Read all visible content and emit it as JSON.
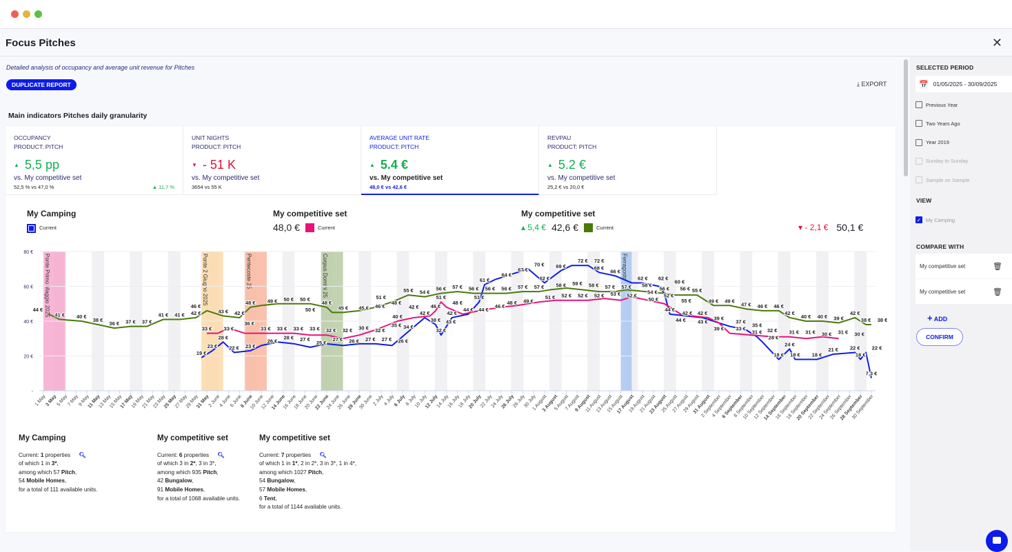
{
  "window": {
    "title": "Focus Pitches",
    "close_icon": "close-icon"
  },
  "description": "Detailed analysis of occupancy and average unit revenue for Pitches",
  "duplicate_label": "DUPLICATE REPORT",
  "export_label": "EXPORT",
  "section_title": "Main indicators Pitches daily granularity",
  "kpis": [
    {
      "title": "OCCUPANCY",
      "product": "PRODUCT: PITCH",
      "trend": "up",
      "value": "5,5 pp",
      "vs": "vs. My competitive set",
      "detail": "52,5 % vs 47,0 %",
      "extra": "11,7 %"
    },
    {
      "title": "UNIT NIGHTS",
      "product": "PRODUCT: PITCH",
      "trend": "down",
      "value": "- 51 K",
      "vs": "vs. My competitive set",
      "detail": "3654 vs 55 K",
      "extra": ""
    },
    {
      "title": "AVERAGE UNIT RATE",
      "product": "PRODUCT: PITCH",
      "trend": "up",
      "value": "5.4 €",
      "vs": "vs. My competitive set",
      "detail": "48,0 € vs 42,6 €",
      "extra": "",
      "active": true
    },
    {
      "title": "REVPAU",
      "product": "PRODUCT: PITCH",
      "trend": "up",
      "value": "5.2 €",
      "vs": "vs. My competitive set",
      "detail": "25,2 € vs 20,0 €",
      "extra": ""
    }
  ],
  "legend": [
    {
      "name": "My Camping",
      "label": "Current",
      "color": "#0c1ce8",
      "value": "",
      "delta": ""
    },
    {
      "name": "My competitive set",
      "label": "Current",
      "color": "#e8137a",
      "value": "48,0 €",
      "delta": ""
    },
    {
      "name": "My competitive set",
      "label": "Current",
      "color": "#4a7a0a",
      "value": "42,6 €",
      "delta": "5,4 €",
      "delta_dir": "up",
      "delta2": "- 2,1 €",
      "value2": "50,1 €"
    }
  ],
  "chart_data": {
    "type": "line",
    "ylim": [
      0,
      80
    ],
    "yticks": [
      "-",
      "20 €",
      "40 €",
      "60 €",
      "80 €"
    ],
    "grid": true,
    "xticks": [
      "1 May",
      "3 May",
      "5 May",
      "7 May",
      "9 May",
      "11 May",
      "13 May",
      "15 May",
      "17 May",
      "19 May",
      "21 May",
      "23 May",
      "25 May",
      "27 May",
      "29 May",
      "31 May",
      "2 June",
      "4 June",
      "6 June",
      "8 June",
      "10 June",
      "12 June",
      "14 June",
      "16 June",
      "18 June",
      "20 June",
      "22 June",
      "24 June",
      "26 June",
      "28 June",
      "30 June",
      "2 July",
      "4 July",
      "6 July",
      "8 July",
      "10 July",
      "12 July",
      "14 July",
      "16 July",
      "18 July",
      "20 July",
      "22 July",
      "24 July",
      "26 July",
      "28 July",
      "30 July",
      "1 August",
      "3 August",
      "5 August",
      "7 August",
      "9 August",
      "11 August",
      "13 August",
      "15 August",
      "17 August",
      "19 August",
      "21 August",
      "23 August",
      "25 August",
      "27 August",
      "29 August",
      "31 August",
      "2 September",
      "4 September",
      "6 September",
      "8 September",
      "10 September",
      "12 September",
      "14 September",
      "16 September",
      "18 September",
      "20 September",
      "22 September",
      "24 September",
      "26 September",
      "28 September",
      "30 September"
    ],
    "bold_xticks": [
      "3 May",
      "11 May",
      "17 May",
      "25 May",
      "31 May",
      "8 June",
      "14 June",
      "22 June",
      "28 June",
      "6 July",
      "12 July",
      "20 July",
      "26 July",
      "3 August",
      "9 August",
      "17 August",
      "23 August",
      "31 August",
      "6 September",
      "14 September",
      "20 September",
      "28 September"
    ],
    "events": [
      {
        "name": "Ponte Primo Maggio 2025",
        "start": "1 May",
        "end": "4 May",
        "color": "#f7a9cf"
      },
      {
        "name": "Ponte 2 Giugno 2025",
        "start": "30 May",
        "end": "2 June",
        "color": "#fcd9a8"
      },
      {
        "name": "Pentecoste 25",
        "start": "7 June",
        "end": "10 June",
        "color": "#f9b79e"
      },
      {
        "name": "Corpus Domini 25",
        "start": "21 June",
        "end": "24 June",
        "color": "#b9cba3"
      },
      {
        "name": "Ferragosto",
        "start": "15 August",
        "end": "16 August",
        "color": "#a9c6f0"
      }
    ],
    "series": [
      {
        "name": "My Camping",
        "color": "#0c1ce8",
        "points": [
          [
            "30 May",
            19
          ],
          [
            "1 June",
            23
          ],
          [
            "3 June",
            28
          ],
          [
            "5 June",
            22
          ],
          [
            "8 June",
            23
          ],
          [
            "10 June",
            26
          ],
          [
            "13 June",
            28
          ],
          [
            "16 June",
            27
          ],
          [
            "19 June",
            25
          ],
          [
            "22 June",
            27
          ],
          [
            "25 June",
            26
          ],
          [
            "28 June",
            27
          ],
          [
            "1 July",
            27
          ],
          [
            "4 July",
            26
          ],
          [
            "7 July",
            34
          ],
          [
            "10 July",
            42
          ],
          [
            "12 July",
            38
          ],
          [
            "13 July",
            32
          ],
          [
            "15 July",
            42
          ],
          [
            "18 July",
            44
          ],
          [
            "20 July",
            51
          ],
          [
            "21 July",
            61
          ],
          [
            "23 July",
            64
          ],
          [
            "26 July",
            67
          ],
          [
            "29 July",
            70
          ],
          [
            "1 August",
            62
          ],
          [
            "4 August",
            69
          ],
          [
            "6 August",
            72
          ],
          [
            "9 August",
            72
          ],
          [
            "11 August",
            68
          ],
          [
            "14 August",
            66
          ],
          [
            "17 August",
            62
          ],
          [
            "19 August",
            62
          ],
          [
            "22 August",
            60
          ],
          [
            "23 August",
            56
          ],
          [
            "24 August",
            44
          ],
          [
            "30 August",
            42
          ],
          [
            "2 September",
            39
          ],
          [
            "4 September",
            37
          ],
          [
            "7 September",
            35
          ],
          [
            "9 September",
            31
          ],
          [
            "10 September",
            28
          ],
          [
            "13 September",
            18
          ],
          [
            "15 September",
            24
          ],
          [
            "16 September",
            18
          ],
          [
            "20 September",
            18
          ],
          [
            "23 September",
            21
          ],
          [
            "27 September",
            22
          ],
          [
            "28 September",
            18
          ],
          [
            "29 September",
            22
          ],
          [
            "30 September",
            7.3
          ]
        ]
      },
      {
        "name": "My competitive set",
        "color": "#e8137a",
        "points": [
          [
            "31 May",
            33
          ],
          [
            "2 June",
            33
          ],
          [
            "4 June",
            36
          ],
          [
            "7 June",
            33
          ],
          [
            "10 June",
            33
          ],
          [
            "13 June",
            33
          ],
          [
            "16 June",
            33
          ],
          [
            "19 June",
            32
          ],
          [
            "22 June",
            32
          ],
          [
            "25 June",
            30
          ],
          [
            "28 June",
            32
          ],
          [
            "1 July",
            35
          ],
          [
            "5 July",
            40
          ],
          [
            "8 July",
            42
          ],
          [
            "11 July",
            43
          ],
          [
            "12 July",
            46
          ],
          [
            "13 July",
            51
          ],
          [
            "14 July",
            48
          ],
          [
            "17 July",
            44
          ],
          [
            "20 July",
            46
          ],
          [
            "24 July",
            48
          ],
          [
            "27 July",
            49
          ],
          [
            "31 July",
            51
          ],
          [
            "3 August",
            52
          ],
          [
            "6 August",
            52
          ],
          [
            "9 August",
            52
          ],
          [
            "12 August",
            53
          ],
          [
            "15 August",
            52
          ],
          [
            "17 August",
            54
          ],
          [
            "20 August",
            52
          ],
          [
            "23 August",
            50
          ],
          [
            "26 August",
            44
          ],
          [
            "28 August",
            43
          ],
          [
            "31 August",
            42
          ],
          [
            "2 September",
            39
          ],
          [
            "4 September",
            33
          ],
          [
            "8 September",
            32
          ],
          [
            "12 September",
            31
          ],
          [
            "15 September",
            31
          ],
          [
            "18 September",
            30
          ],
          [
            "21 September",
            31
          ],
          [
            "24 September",
            30
          ]
        ]
      },
      {
        "name": "My competitive set",
        "color": "#4a7a0a",
        "points": [
          [
            "2 May",
            44
          ],
          [
            "4 May",
            41
          ],
          [
            "8 May",
            40
          ],
          [
            "11 May",
            38
          ],
          [
            "14 May",
            36
          ],
          [
            "17 May",
            37
          ],
          [
            "20 May",
            37
          ],
          [
            "23 May",
            41
          ],
          [
            "26 May",
            41
          ],
          [
            "29 May",
            42
          ],
          [
            "31 May",
            46
          ],
          [
            "3 June",
            43
          ],
          [
            "6 June",
            42
          ],
          [
            "8 June",
            48
          ],
          [
            "10 June",
            49
          ],
          [
            "13 June",
            50
          ],
          [
            "16 June",
            50
          ],
          [
            "19 June",
            50
          ],
          [
            "22 June",
            48
          ],
          [
            "23 June",
            45
          ],
          [
            "25 June",
            45
          ],
          [
            "28 June",
            46
          ],
          [
            "1 July",
            48
          ],
          [
            "4 July",
            51
          ],
          [
            "7 July",
            55
          ],
          [
            "10 July",
            54
          ],
          [
            "13 July",
            56
          ],
          [
            "16 July",
            57
          ],
          [
            "19 July",
            56
          ],
          [
            "22 July",
            56
          ],
          [
            "25 July",
            56
          ],
          [
            "28 July",
            57
          ],
          [
            "31 July",
            57
          ],
          [
            "2 August",
            58
          ],
          [
            "5 August",
            59
          ],
          [
            "8 August",
            58
          ],
          [
            "11 August",
            57
          ],
          [
            "14 August",
            57
          ],
          [
            "16 August",
            58
          ],
          [
            "23 August",
            56
          ],
          [
            "25 August",
            55
          ],
          [
            "29 August",
            55
          ],
          [
            "1 September",
            49
          ],
          [
            "4 September",
            49
          ],
          [
            "7 September",
            47
          ],
          [
            "10 September",
            46
          ],
          [
            "13 September",
            46
          ],
          [
            "15 September",
            42
          ],
          [
            "18 September",
            40
          ],
          [
            "21 September",
            40
          ],
          [
            "24 September",
            39
          ],
          [
            "27 September",
            42
          ],
          [
            "29 September",
            38
          ],
          [
            "30 September",
            38
          ]
        ]
      }
    ]
  },
  "summaries": [
    {
      "title": "My Camping",
      "lines": [
        [
          "Current: ",
          "1",
          " properties"
        ],
        [
          "of which  1 in ",
          "3*",
          ","
        ],
        [
          "among which 57 ",
          "Pitch",
          ","
        ],
        [
          "54 ",
          "Mobile Homes",
          ","
        ],
        [
          "for a total of 111 available units.",
          "",
          ""
        ]
      ]
    },
    {
      "title": "My competitive set",
      "lines": [
        [
          "Current: ",
          "6",
          " properties"
        ],
        [
          "of which  3 in ",
          "2*",
          ", 3 in 3*,"
        ],
        [
          "among which 935 ",
          "Pitch",
          ","
        ],
        [
          "42 ",
          "Bungalow",
          ","
        ],
        [
          "91 ",
          "Mobile Homes",
          ","
        ],
        [
          "for a total of 1068 available units.",
          "",
          ""
        ]
      ]
    },
    {
      "title": "My competitive set",
      "lines": [
        [
          "Current: ",
          "7",
          " properties"
        ],
        [
          "of which  1 in ",
          "1*",
          ", 2 in 2*, 3 in 3*, 1 in 4*,"
        ],
        [
          "among which 1027 ",
          "Pitch",
          ","
        ],
        [
          "54 ",
          "Bungalow",
          ","
        ],
        [
          "57 ",
          "Mobile Homes",
          ","
        ],
        [
          "6 ",
          "Tent",
          ","
        ],
        [
          "for a total of 1144 available units.",
          "",
          ""
        ]
      ]
    }
  ],
  "sidebar": {
    "period_title": "SELECTED PERIOD",
    "period": "01/05/2025 - 30/09/2025",
    "options": [
      {
        "label": "Previous Year",
        "enabled": true
      },
      {
        "label": "Two Years Ago",
        "enabled": true
      },
      {
        "label": "Year 2019",
        "enabled": true
      },
      {
        "label": "Sunday to Sunday",
        "enabled": false
      },
      {
        "label": "Sample on Sample",
        "enabled": false
      }
    ],
    "view_title": "VIEW",
    "view_item": "My Camping",
    "compare_title": "COMPARE WITH",
    "compare": [
      "My competitive set",
      "My competitive set"
    ],
    "add_label": "ADD",
    "confirm_label": "CONFIRM"
  }
}
